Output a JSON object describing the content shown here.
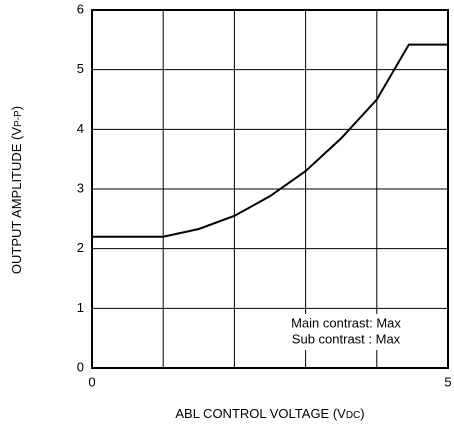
{
  "chart_data": {
    "type": "line",
    "xlabel": {
      "text": "ABL CONTROL VOLTAGE (V",
      "sub": "DC",
      "end": ")"
    },
    "ylabel": {
      "text": "OUTPUT AMPLITUDE (V",
      "sub": "P-P",
      "end": ")"
    },
    "annotations": [
      "Main contrast: Max",
      "Sub contrast : Max"
    ],
    "x": [
      0,
      1,
      1.5,
      2,
      2.5,
      3,
      3.5,
      4,
      4.45,
      5
    ],
    "series": [
      {
        "color": "#000000",
        "values": [
          2.2,
          2.2,
          2.33,
          2.55,
          2.88,
          3.3,
          3.85,
          4.5,
          5.42,
          5.42
        ]
      }
    ],
    "xlim": [
      0,
      5
    ],
    "xticks": [
      0,
      5
    ],
    "xgrid": [
      1,
      2,
      3,
      4
    ],
    "ylim": [
      0,
      6
    ],
    "yticks": [
      0,
      1,
      2,
      3,
      4,
      5,
      6
    ],
    "grid": true
  }
}
